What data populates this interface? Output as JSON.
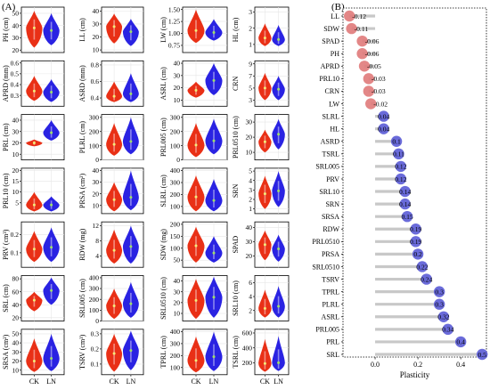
{
  "panel_a_label": "(A)",
  "panel_b_label": "(B)",
  "colors": {
    "ck": "#e8250a",
    "ln": "#1f17e0",
    "median_ck": "#f3ec7a",
    "median_ln": "#9fe06a",
    "bubble_neg": "#e07a7a",
    "bubble_pos": "#5a5bd6",
    "stem": "#c8c8c8"
  },
  "chart_data": [
    {
      "type": "violin",
      "groups": [
        "CK",
        "LN"
      ],
      "panels": [
        {
          "ylabel": "PH (cm)",
          "ticks": [
            "20",
            "30",
            "40",
            "50"
          ],
          "ylim": [
            18,
            55
          ],
          "ck": {
            "lo": 22,
            "med": 38,
            "hi": 52
          },
          "ln": {
            "lo": 24,
            "med": 36,
            "hi": 50
          }
        },
        {
          "ylabel": "LL (cm)",
          "ticks": [
            "10",
            "20",
            "30",
            "40"
          ],
          "ylim": [
            8,
            43
          ],
          "ck": {
            "lo": 15,
            "med": 28,
            "hi": 38
          },
          "ln": {
            "lo": 13,
            "med": 24,
            "hi": 34
          }
        },
        {
          "ylabel": "LW (cm)",
          "ticks": [
            "0.75",
            "1.00",
            "1.25",
            "1.50"
          ],
          "ylim": [
            0.6,
            1.55
          ],
          "ck": {
            "lo": 0.8,
            "med": 1.06,
            "hi": 1.5
          },
          "ln": {
            "lo": 0.85,
            "med": 1.02,
            "hi": 1.3
          }
        },
        {
          "ylabel": "HL (cm)",
          "ticks": [
            "1",
            "2",
            "3"
          ],
          "ylim": [
            0.5,
            3.3
          ],
          "ck": {
            "lo": 0.9,
            "med": 1.4,
            "hi": 2.3
          },
          "ln": {
            "lo": 0.9,
            "med": 1.3,
            "hi": 2.2
          }
        },
        {
          "ylabel": "APRD (mm)",
          "ticks": [
            "0.3",
            "0.4",
            "0.5",
            "0.6"
          ],
          "ylim": [
            0.2,
            0.62
          ],
          "ck": {
            "lo": 0.25,
            "med": 0.34,
            "hi": 0.48
          },
          "ln": {
            "lo": 0.24,
            "med": 0.33,
            "hi": 0.45
          }
        },
        {
          "ylabel": "ASRD (mm)",
          "ticks": [
            "0.4",
            "0.6",
            "0.8"
          ],
          "ylim": [
            0.3,
            0.85
          ],
          "ck": {
            "lo": 0.35,
            "med": 0.42,
            "hi": 0.6
          },
          "ln": {
            "lo": 0.35,
            "med": 0.45,
            "hi": 0.7
          }
        },
        {
          "ylabel": "ASRL (cm)",
          "ticks": [
            "10",
            "20",
            "30",
            "40"
          ],
          "ylim": [
            5,
            42
          ],
          "ck": {
            "lo": 12,
            "med": 18,
            "hi": 25
          },
          "ln": {
            "lo": 14,
            "med": 26,
            "hi": 40
          }
        },
        {
          "ylabel": "CRN",
          "ticks": [
            "3",
            "5",
            "7",
            "9"
          ],
          "ylim": [
            2,
            9.5
          ],
          "ck": {
            "lo": 3,
            "med": 5,
            "hi": 7.5
          },
          "ln": {
            "lo": 3,
            "med": 4.8,
            "hi": 7
          }
        },
        {
          "ylabel": "PRL (cm)",
          "ticks": [
            "10",
            "20",
            "30",
            "40"
          ],
          "ylim": [
            5,
            45
          ],
          "ck": {
            "lo": 17,
            "med": 20,
            "hi": 23
          },
          "ln": {
            "lo": 22,
            "med": 29,
            "hi": 40
          }
        },
        {
          "ylabel": "PLRL (cm)",
          "ticks": [
            "0",
            "100",
            "200",
            "300"
          ],
          "ylim": [
            0,
            320
          ],
          "ck": {
            "lo": 30,
            "med": 110,
            "hi": 260
          },
          "ln": {
            "lo": 40,
            "med": 130,
            "hi": 300
          }
        },
        {
          "ylabel": "PRL005 (cm)",
          "ticks": [
            "0",
            "100",
            "200",
            "300"
          ],
          "ylim": [
            0,
            320
          ],
          "ck": {
            "lo": 20,
            "med": 105,
            "hi": 260
          },
          "ln": {
            "lo": 40,
            "med": 135,
            "hi": 290
          }
        },
        {
          "ylabel": "PRL0510 (cm)",
          "ticks": [
            "10",
            "20",
            "30"
          ],
          "ylim": [
            5,
            35
          ],
          "ck": {
            "lo": 10,
            "med": 17,
            "hi": 25
          },
          "ln": {
            "lo": 12,
            "med": 22,
            "hi": 32
          }
        },
        {
          "ylabel": "PRL10 (cm)",
          "ticks": [
            "5",
            "10",
            "15",
            "20"
          ],
          "ylim": [
            0,
            21
          ],
          "ck": {
            "lo": 1,
            "med": 4,
            "hi": 10
          },
          "ln": {
            "lo": 1,
            "med": 4,
            "hi": 8
          }
        },
        {
          "ylabel": "PRSA (cm²)",
          "ticks": [
            "10",
            "20",
            "30",
            "40"
          ],
          "ylim": [
            3,
            42
          ],
          "ck": {
            "lo": 5,
            "med": 15,
            "hi": 30
          },
          "ln": {
            "lo": 6,
            "med": 17,
            "hi": 40
          }
        },
        {
          "ylabel": "SLRL (cm)",
          "ticks": [
            "100",
            "200",
            "300",
            "400"
          ],
          "ylim": [
            40,
            420
          ],
          "ck": {
            "lo": 60,
            "med": 180,
            "hi": 360
          },
          "ln": {
            "lo": 60,
            "med": 150,
            "hi": 330
          }
        },
        {
          "ylabel": "SRN",
          "ticks": [
            "1",
            "2",
            "3",
            "4",
            "5"
          ],
          "ylim": [
            0.5,
            5.3
          ],
          "ck": {
            "lo": 1,
            "med": 2.6,
            "hi": 4.5
          },
          "ln": {
            "lo": 1.2,
            "med": 2.9,
            "hi": 5
          }
        },
        {
          "ylabel": "PRV (cm³)",
          "ticks": [
            "0.1",
            "0.2"
          ],
          "ylim": [
            0.02,
            0.27
          ],
          "ck": {
            "lo": 0.05,
            "med": 0.12,
            "hi": 0.22
          },
          "ln": {
            "lo": 0.05,
            "med": 0.13,
            "hi": 0.24
          }
        },
        {
          "ylabel": "RDW (mg)",
          "ticks": [
            "4",
            "8",
            "12"
          ],
          "ylim": [
            1,
            13
          ],
          "ck": {
            "lo": 2,
            "med": 5.5,
            "hi": 11
          },
          "ln": {
            "lo": 2,
            "med": 6.5,
            "hi": 12
          }
        },
        {
          "ylabel": "SDW (mg)",
          "ticks": [
            "50",
            "100",
            "150",
            "200"
          ],
          "ylim": [
            20,
            210
          ],
          "ck": {
            "lo": 40,
            "med": 110,
            "hi": 190
          },
          "ln": {
            "lo": 40,
            "med": 80,
            "hi": 150
          }
        },
        {
          "ylabel": "SPAD",
          "ticks": [
            "20",
            "30",
            "40"
          ],
          "ylim": [
            12,
            44
          ],
          "ck": {
            "lo": 17,
            "med": 28,
            "hi": 38
          },
          "ln": {
            "lo": 16,
            "med": 25,
            "hi": 35
          }
        },
        {
          "ylabel": "SRL (cm)",
          "ticks": [
            "20",
            "40",
            "60",
            "80"
          ],
          "ylim": [
            15,
            85
          ],
          "ck": {
            "lo": 30,
            "med": 47,
            "hi": 60
          },
          "ln": {
            "lo": 40,
            "med": 62,
            "hi": 82
          }
        },
        {
          "ylabel": "SRL005 (cm)",
          "ticks": [
            "0",
            "100",
            "200",
            "300",
            "400"
          ],
          "ylim": [
            0,
            420
          ],
          "ck": {
            "lo": 20,
            "med": 140,
            "hi": 300
          },
          "ln": {
            "lo": 30,
            "med": 160,
            "hi": 360
          }
        },
        {
          "ylabel": "SRL0510 (cm)",
          "ticks": [
            "10",
            "20",
            "30",
            "40"
          ],
          "ylim": [
            3,
            45
          ],
          "ck": {
            "lo": 5,
            "med": 22,
            "hi": 42
          },
          "ln": {
            "lo": 6,
            "med": 25,
            "hi": 44
          }
        },
        {
          "ylabel": "SRL10 (cm)",
          "ticks": [
            "2",
            "4",
            "6"
          ],
          "ylim": [
            0.5,
            7
          ],
          "ck": {
            "lo": 1,
            "med": 2.3,
            "hi": 5
          },
          "ln": {
            "lo": 1,
            "med": 2.6,
            "hi": 5.5
          }
        },
        {
          "ylabel": "SRSA (cm²)",
          "ticks": [
            "10",
            "20",
            "30",
            "40",
            "50"
          ],
          "ylim": [
            5,
            55
          ],
          "ck": {
            "lo": 8,
            "med": 20,
            "hi": 45
          },
          "ln": {
            "lo": 9,
            "med": 23,
            "hi": 50
          }
        },
        {
          "ylabel": "TSRV (cm³)",
          "ticks": [
            "0.1",
            "0.2",
            "0.3"
          ],
          "ylim": [
            0.03,
            0.33
          ],
          "ck": {
            "lo": 0.05,
            "med": 0.17,
            "hi": 0.3
          },
          "ln": {
            "lo": 0.06,
            "med": 0.19,
            "hi": 0.32
          }
        },
        {
          "ylabel": "TPRL (cm)",
          "ticks": [
            "100",
            "200",
            "300",
            "400"
          ],
          "ylim": [
            40,
            420
          ],
          "ck": {
            "lo": 60,
            "med": 160,
            "hi": 360
          },
          "ln": {
            "lo": 70,
            "med": 190,
            "hi": 400
          }
        },
        {
          "ylabel": "TSRL (cm)",
          "ticks": [
            "200",
            "400",
            "600"
          ],
          "ylim": [
            40,
            650
          ],
          "ck": {
            "lo": 80,
            "med": 190,
            "hi": 520
          },
          "ln": {
            "lo": 90,
            "med": 200,
            "hi": 560
          }
        }
      ]
    },
    {
      "type": "lollipop",
      "xlabel": "Plasticity",
      "xticks": [
        "0.0",
        "0.2",
        "0.4"
      ],
      "xlim": [
        -0.15,
        0.52
      ],
      "items": [
        {
          "name": "LL",
          "value": -0.12,
          "label": "-0.12"
        },
        {
          "name": "SDW",
          "value": -0.11,
          "label": "-0.11"
        },
        {
          "name": "SPAD",
          "value": -0.06,
          "label": "-0.06"
        },
        {
          "name": "PH",
          "value": -0.06,
          "label": "-0.06"
        },
        {
          "name": "APRD",
          "value": -0.05,
          "label": "-0.05"
        },
        {
          "name": "PRL10",
          "value": -0.03,
          "label": "-0.03"
        },
        {
          "name": "CRN",
          "value": -0.03,
          "label": "-0.03"
        },
        {
          "name": "LW",
          "value": -0.02,
          "label": "-0.02"
        },
        {
          "name": "SLRL",
          "value": 0.04,
          "label": "0.04"
        },
        {
          "name": "HL",
          "value": 0.04,
          "label": "0.04"
        },
        {
          "name": "ASRD",
          "value": 0.1,
          "label": "0.1"
        },
        {
          "name": "TSRL",
          "value": 0.11,
          "label": "0.11"
        },
        {
          "name": "SRL005",
          "value": 0.12,
          "label": "0.12"
        },
        {
          "name": "PRV",
          "value": 0.12,
          "label": "0.12"
        },
        {
          "name": "SRL10",
          "value": 0.14,
          "label": "0.14"
        },
        {
          "name": "SRN",
          "value": 0.14,
          "label": "0.14"
        },
        {
          "name": "SRSA",
          "value": 0.15,
          "label": "0.15"
        },
        {
          "name": "RDW",
          "value": 0.19,
          "label": "0.19"
        },
        {
          "name": "PRL0510",
          "value": 0.19,
          "label": "0.19"
        },
        {
          "name": "PRSA",
          "value": 0.2,
          "label": "0.2"
        },
        {
          "name": "SRL0510",
          "value": 0.22,
          "label": "0.22"
        },
        {
          "name": "TSRV",
          "value": 0.24,
          "label": "0.24"
        },
        {
          "name": "TPRL",
          "value": 0.3,
          "label": "0.3"
        },
        {
          "name": "PLRL",
          "value": 0.3,
          "label": "0.3"
        },
        {
          "name": "ASRL",
          "value": 0.32,
          "label": "0.32"
        },
        {
          "name": "PRL005",
          "value": 0.34,
          "label": "0.34"
        },
        {
          "name": "PRL",
          "value": 0.4,
          "label": "0.4"
        },
        {
          "name": "SRL",
          "value": 0.5,
          "label": "0.5"
        }
      ]
    }
  ]
}
